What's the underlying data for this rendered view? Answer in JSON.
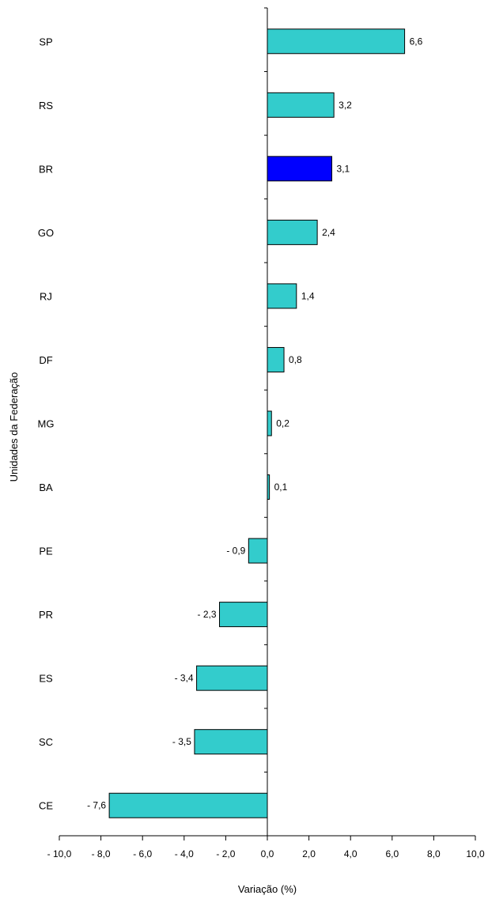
{
  "chart_data": {
    "type": "bar",
    "orientation": "horizontal",
    "title": "",
    "xlabel": "Variação (%)",
    "ylabel": "Unidades da Federação",
    "xlim": [
      -10,
      10
    ],
    "x_ticks": [
      -10,
      -8,
      -6,
      -4,
      -2,
      0,
      2,
      4,
      6,
      8,
      10
    ],
    "x_tick_labels": [
      "- 10,0",
      "- 8,0",
      "- 6,0",
      "- 4,0",
      "- 2,0",
      "0,0",
      "2,0",
      "4,0",
      "6,0",
      "8,0",
      "10,0"
    ],
    "categories": [
      "SP",
      "RS",
      "BR",
      "GO",
      "RJ",
      "DF",
      "MG",
      "BA",
      "PE",
      "PR",
      "ES",
      "SC",
      "CE"
    ],
    "values": [
      6.6,
      3.2,
      3.1,
      2.4,
      1.4,
      0.8,
      0.2,
      0.1,
      -0.9,
      -2.3,
      -3.4,
      -3.5,
      -7.6
    ],
    "value_labels": [
      "6,6",
      "3,2",
      "3,1",
      "2,4",
      "1,4",
      "0,8",
      "0,2",
      "0,1",
      "- 0,9",
      "- 2,3",
      "- 3,4",
      "- 3,5",
      "- 7,6"
    ],
    "colors": {
      "default": "#33cccc",
      "highlight": "#0000ff",
      "highlight_category": "BR",
      "outline": "#000000"
    },
    "grid": false,
    "legend": "none"
  }
}
